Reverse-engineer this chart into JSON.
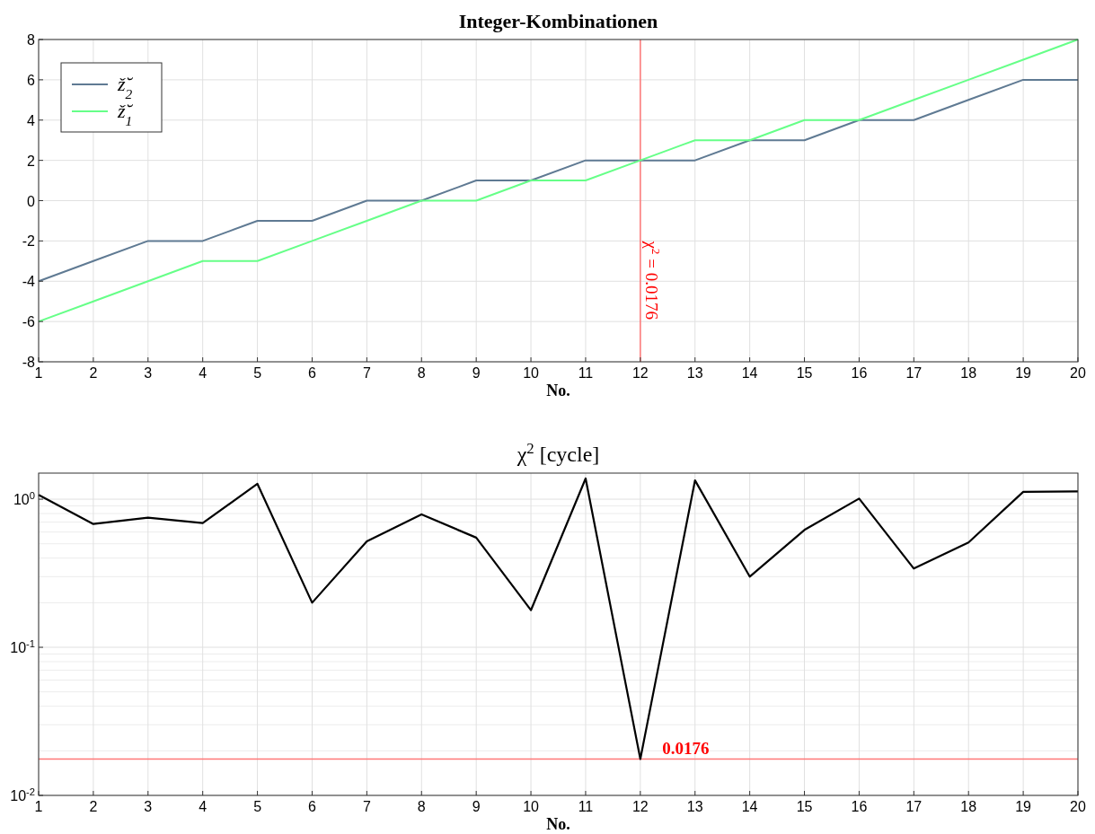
{
  "chart_data": [
    {
      "type": "line",
      "title": "Integer-Kombinationen",
      "xlabel": "No.",
      "x": [
        1,
        2,
        3,
        4,
        5,
        6,
        7,
        8,
        9,
        10,
        11,
        12,
        13,
        14,
        15,
        16,
        17,
        18,
        19,
        20
      ],
      "series": [
        {
          "name": "ž̆$_{2}$",
          "color": "#5f7a93",
          "values": [
            -4,
            -3,
            -2,
            -2,
            -1,
            -1,
            0,
            0,
            1,
            1,
            2,
            2,
            2,
            3,
            3,
            4,
            4,
            5,
            6,
            6
          ]
        },
        {
          "name": "ž̆$_{1}$",
          "color": "#66ff88",
          "values": [
            -6,
            -5,
            -4,
            -3,
            -3,
            -2,
            -1,
            0,
            0,
            1,
            1,
            2,
            3,
            3,
            4,
            4,
            5,
            6,
            7,
            8
          ]
        }
      ],
      "xlim": [
        1,
        20
      ],
      "xticks": [
        1,
        2,
        3,
        4,
        5,
        6,
        7,
        8,
        9,
        10,
        11,
        12,
        13,
        14,
        15,
        16,
        17,
        18,
        19,
        20
      ],
      "ylim": [
        -8,
        8
      ],
      "yticks": [
        -8,
        -6,
        -4,
        -2,
        0,
        2,
        4,
        6,
        8
      ],
      "ref_lines": [
        {
          "axis": "x",
          "value": 12,
          "color": "#ff7777"
        }
      ],
      "annotations": [
        {
          "text": "χ$^{2}$ = 0.0176",
          "x": 12,
          "y": -2
        }
      ],
      "grid": true,
      "legend": "top left"
    },
    {
      "type": "line",
      "title": "χ$^{2}$  [cycle]",
      "xlabel": "No.",
      "x": [
        1,
        2,
        3,
        4,
        5,
        6,
        7,
        8,
        9,
        10,
        11,
        12,
        13,
        14,
        15,
        16,
        17,
        18,
        19,
        20
      ],
      "series": [
        {
          "color": "#000000",
          "values": [
            1.07,
            0.68,
            0.75,
            0.69,
            1.27,
            0.2,
            0.52,
            0.79,
            0.55,
            0.178,
            1.38,
            0.0176,
            1.34,
            0.3,
            0.62,
            1.01,
            0.34,
            0.51,
            1.12,
            1.13
          ]
        }
      ],
      "xlim": [
        1,
        20
      ],
      "xticks": [
        1,
        2,
        3,
        4,
        5,
        6,
        7,
        8,
        9,
        10,
        11,
        12,
        13,
        14,
        15,
        16,
        17,
        18,
        19,
        20
      ],
      "ylim": [
        0.01,
        1.5
      ],
      "yticks": [
        {
          "value": 0.01,
          "label": "10$^{-2}$"
        },
        {
          "value": 0.1,
          "label": "10$^{-1}$"
        },
        {
          "value": 1,
          "label": "10$^{0}$"
        }
      ],
      "log": "y",
      "ref_lines": [
        {
          "axis": "y",
          "value": 0.0176,
          "label": "0.0176",
          "color": "#ff7777"
        }
      ],
      "grid": true
    }
  ]
}
